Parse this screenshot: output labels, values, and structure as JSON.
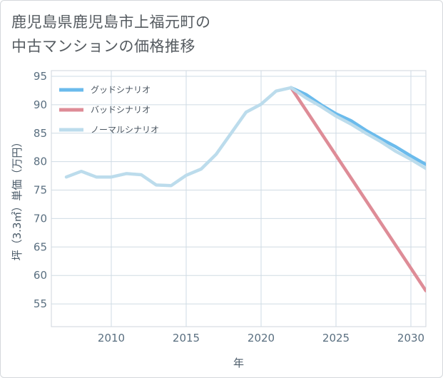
{
  "title_lines": [
    "鹿児島県鹿児島市上福元町の",
    "中古マンションの価格推移"
  ],
  "chart_data": {
    "type": "line",
    "title": "鹿児島県鹿児島市上福元町の中古マンションの価格推移",
    "xlabel": "年",
    "ylabel": "坪（3.3㎡）単価（万円）",
    "xlim": [
      2006,
      2031
    ],
    "ylim": [
      51,
      96
    ],
    "x_ticks": [
      2010,
      2015,
      2020,
      2025,
      2030
    ],
    "y_ticks": [
      55,
      60,
      65,
      70,
      75,
      80,
      85,
      90,
      95
    ],
    "grid": true,
    "legend_position": "top-left",
    "series": [
      {
        "name": "グッドシナリオ",
        "color": "#6bbbec",
        "x": [
          2022,
          2023,
          2024,
          2025,
          2026,
          2027,
          2028,
          2029,
          2030,
          2031
        ],
        "y": [
          93.0,
          91.8,
          90.0,
          88.4,
          87.2,
          85.5,
          84.0,
          82.6,
          81.0,
          79.5
        ]
      },
      {
        "name": "バッドシナリオ",
        "color": "#de8c97",
        "x": [
          2022,
          2031
        ],
        "y": [
          93.0,
          57.3
        ]
      },
      {
        "name": "ノーマルシナリオ",
        "color": "#bcdcec",
        "x": [
          2007,
          2008,
          2009,
          2010,
          2011,
          2012,
          2013,
          2014,
          2015,
          2016,
          2017,
          2018,
          2019,
          2020,
          2021,
          2022,
          2023,
          2024,
          2025,
          2026,
          2027,
          2028,
          2029,
          2030,
          2031
        ],
        "y": [
          77.3,
          78.3,
          77.3,
          77.3,
          77.9,
          77.7,
          75.9,
          75.8,
          77.6,
          78.7,
          81.3,
          85.0,
          88.7,
          90.1,
          92.4,
          93.0,
          91.2,
          89.7,
          88.0,
          86.6,
          85.0,
          83.5,
          81.8,
          80.4,
          78.8
        ]
      }
    ]
  }
}
